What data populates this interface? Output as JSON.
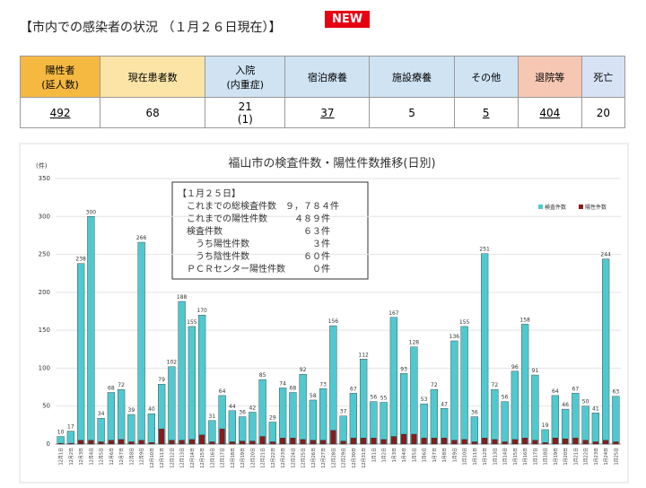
{
  "header": {
    "title": "【市内での感染者の状況 （１月２６日現在）】",
    "badge": "NEW"
  },
  "table": {
    "headers": [
      [
        "陽性者",
        "(延人数)"
      ],
      [
        "現在患者数"
      ],
      [
        "入院",
        "(内重症)"
      ],
      [
        "宿泊療養"
      ],
      [
        "施設療養"
      ],
      [
        "その他"
      ],
      [
        "退院等"
      ],
      [
        "死亡"
      ]
    ],
    "values": [
      [
        "492"
      ],
      [
        "68"
      ],
      [
        "21",
        "(1)"
      ],
      [
        "37"
      ],
      [
        "5"
      ],
      [
        "5"
      ],
      [
        "404"
      ],
      [
        "20"
      ]
    ]
  },
  "chart_data": {
    "type": "bar",
    "title": "福山市の検査件数・陽性件数推移(日別)",
    "y_unit": "(件)",
    "categories": [
      "12月1日",
      "12月2日",
      "12月3日",
      "12月4日",
      "12月5日",
      "12月6日",
      "12月7日",
      "12月8日",
      "12月9日",
      "12月10日",
      "12月11日",
      "12月12日",
      "12月13日",
      "12月14日",
      "12月15日",
      "12月16日",
      "12月17日",
      "12月18日",
      "12月19日",
      "12月20日",
      "12月21日",
      "12月22日",
      "12月23日",
      "12月24日",
      "12月25日",
      "12月26日",
      "12月27日",
      "12月28日",
      "12月29日",
      "12月30日",
      "12月31日",
      "1月1日",
      "1月2日",
      "1月3日",
      "1月4日",
      "1月5日",
      "1月6日",
      "1月7日",
      "1月8日",
      "1月9日",
      "1月10日",
      "1月11日",
      "1月12日",
      "1月13日",
      "1月14日",
      "1月15日",
      "1月16日",
      "1月17日",
      "1月18日",
      "1月19日",
      "1月20日",
      "1月21日",
      "1月22日",
      "1月23日",
      "1月24日",
      "1月25日"
    ],
    "series": [
      {
        "name": "検査件数",
        "color": "#4fc9cf",
        "values": [
          10,
          17,
          238,
          300,
          34,
          68,
          72,
          39,
          266,
          40,
          79,
          102,
          188,
          155,
          170,
          31,
          64,
          44,
          36,
          42,
          85,
          29,
          74,
          68,
          92,
          58,
          73,
          156,
          37,
          67,
          112,
          56,
          55,
          167,
          93,
          128,
          53,
          72,
          47,
          136,
          155,
          36,
          251,
          72,
          56,
          96,
          158,
          91,
          19,
          64,
          46,
          67,
          50,
          41,
          244,
          63
        ]
      },
      {
        "name": "陽性件数",
        "color": "#8b1a1a",
        "values": [
          1,
          1,
          5,
          5,
          3,
          5,
          6,
          3,
          5,
          2,
          20,
          5,
          5,
          6,
          12,
          3,
          20,
          3,
          4,
          4,
          10,
          3,
          8,
          8,
          6,
          5,
          5,
          18,
          4,
          8,
          8,
          8,
          6,
          10,
          13,
          13,
          8,
          8,
          8,
          5,
          6,
          3,
          8,
          6,
          3,
          6,
          8,
          5,
          2,
          8,
          7,
          8,
          5,
          3,
          5,
          3
        ]
      }
    ],
    "ylim": [
      0,
      350
    ],
    "yticks": [
      0,
      50,
      100,
      150,
      200,
      250,
      300,
      350
    ],
    "grid": true,
    "legend": "top-right",
    "annotation": [
      "【１月２５日】",
      "これまでの総検査件数　９，７８４件",
      "これまでの陽性件数　　　４８９件",
      "検査件数　　　　　　　　　６３件",
      "　うち陽性件数　　　　　　　３件",
      "　うち陰性件数　　　　　　６０件",
      "ＰＣＲセンター陽性件数　　　０件"
    ]
  }
}
